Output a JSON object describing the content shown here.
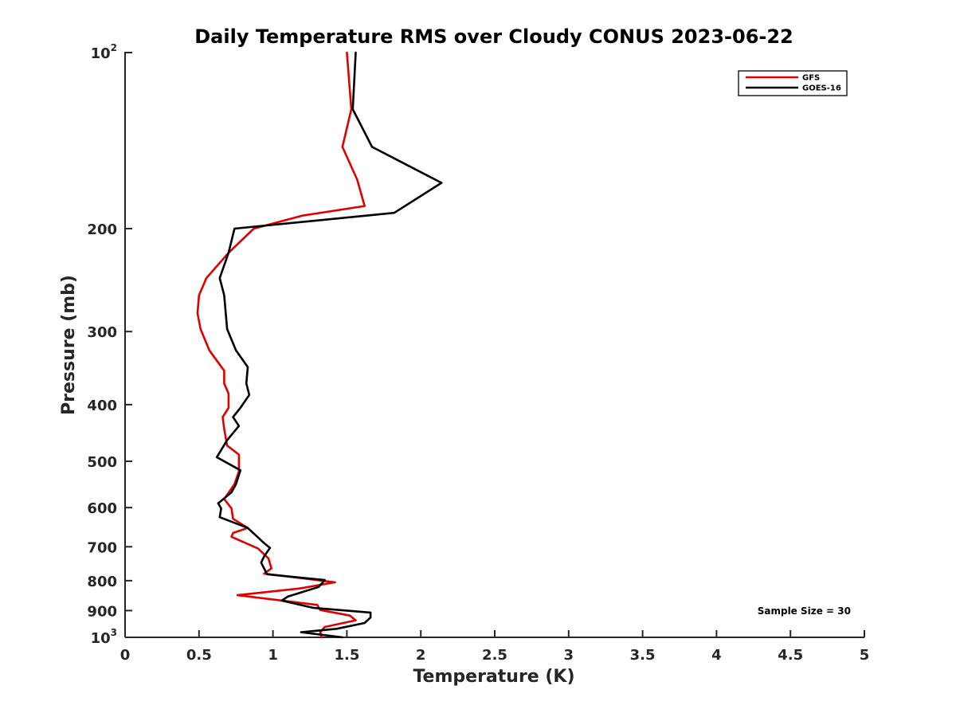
{
  "chart_data": {
    "type": "line",
    "title": "Daily Temperature RMS over Cloudy CONUS 2023-06-22",
    "xlabel": "Temperature (K)",
    "ylabel": "Pressure (mb)",
    "xlim": [
      0,
      5
    ],
    "ylim": [
      100,
      1000
    ],
    "yscale": "log",
    "y_reversed": true,
    "grid": false,
    "legend_position": "top-right",
    "x_ticks": [
      {
        "value": 0,
        "label": "0"
      },
      {
        "value": 0.5,
        "label": "0.5"
      },
      {
        "value": 1,
        "label": "1"
      },
      {
        "value": 1.5,
        "label": "1.5"
      },
      {
        "value": 2,
        "label": "2"
      },
      {
        "value": 2.5,
        "label": "2.5"
      },
      {
        "value": 3,
        "label": "3"
      },
      {
        "value": 3.5,
        "label": "3.5"
      },
      {
        "value": 4,
        "label": "4"
      },
      {
        "value": 4.5,
        "label": "4.5"
      },
      {
        "value": 5,
        "label": "5"
      }
    ],
    "y_ticks": [
      {
        "value": 100,
        "base": "10",
        "exp": "2"
      },
      {
        "value": 200,
        "label": "200"
      },
      {
        "value": 300,
        "label": "300"
      },
      {
        "value": 400,
        "label": "400"
      },
      {
        "value": 500,
        "label": "500"
      },
      {
        "value": 600,
        "label": "600"
      },
      {
        "value": 700,
        "label": "700"
      },
      {
        "value": 800,
        "label": "800"
      },
      {
        "value": 900,
        "label": "900"
      },
      {
        "value": 1000,
        "base": "10",
        "exp": "3"
      }
    ],
    "annotation": "Sample Size = 30",
    "series": [
      {
        "name": "GFS",
        "color": "#e00000",
        "points": [
          [
            1.5,
            100
          ],
          [
            1.53,
            125
          ],
          [
            1.47,
            145
          ],
          [
            1.57,
            165
          ],
          [
            1.62,
            183
          ],
          [
            1.2,
            190
          ],
          [
            0.87,
            200
          ],
          [
            0.7,
            220
          ],
          [
            0.55,
            243
          ],
          [
            0.5,
            260
          ],
          [
            0.49,
            279
          ],
          [
            0.51,
            297
          ],
          [
            0.57,
            323
          ],
          [
            0.67,
            350
          ],
          [
            0.67,
            368
          ],
          [
            0.7,
            383
          ],
          [
            0.7,
            405
          ],
          [
            0.66,
            420
          ],
          [
            0.67,
            440
          ],
          [
            0.69,
            470
          ],
          [
            0.77,
            487
          ],
          [
            0.77,
            520
          ],
          [
            0.74,
            547
          ],
          [
            0.67,
            580
          ],
          [
            0.72,
            602
          ],
          [
            0.73,
            627
          ],
          [
            0.83,
            650
          ],
          [
            0.73,
            663
          ],
          [
            0.72,
            673
          ],
          [
            0.9,
            705
          ],
          [
            0.97,
            733
          ],
          [
            0.99,
            762
          ],
          [
            0.94,
            778
          ],
          [
            1.42,
            805
          ],
          [
            1.18,
            825
          ],
          [
            0.76,
            847
          ],
          [
            1.3,
            880
          ],
          [
            1.32,
            898
          ],
          [
            1.52,
            918
          ],
          [
            1.56,
            935
          ],
          [
            1.35,
            960
          ],
          [
            1.32,
            980
          ],
          [
            1.33,
            1000
          ]
        ]
      },
      {
        "name": "GOES-16",
        "color": "#000000",
        "points": [
          [
            1.56,
            100
          ],
          [
            1.54,
            125
          ],
          [
            1.67,
            145
          ],
          [
            2.14,
            167
          ],
          [
            1.82,
            188
          ],
          [
            0.74,
            200
          ],
          [
            0.7,
            220
          ],
          [
            0.64,
            243
          ],
          [
            0.67,
            260
          ],
          [
            0.69,
            297
          ],
          [
            0.75,
            323
          ],
          [
            0.83,
            345
          ],
          [
            0.82,
            368
          ],
          [
            0.84,
            385
          ],
          [
            0.78,
            405
          ],
          [
            0.73,
            420
          ],
          [
            0.77,
            435
          ],
          [
            0.69,
            460
          ],
          [
            0.62,
            492
          ],
          [
            0.78,
            518
          ],
          [
            0.75,
            547
          ],
          [
            0.72,
            565
          ],
          [
            0.63,
            590
          ],
          [
            0.65,
            602
          ],
          [
            0.64,
            623
          ],
          [
            0.83,
            650
          ],
          [
            0.94,
            690
          ],
          [
            0.98,
            703
          ],
          [
            0.94,
            727
          ],
          [
            0.92,
            745
          ],
          [
            0.96,
            780
          ],
          [
            1.35,
            798
          ],
          [
            1.31,
            820
          ],
          [
            1.1,
            852
          ],
          [
            1.06,
            865
          ],
          [
            1.27,
            890
          ],
          [
            1.66,
            907
          ],
          [
            1.66,
            925
          ],
          [
            1.62,
            945
          ],
          [
            1.43,
            967
          ],
          [
            1.19,
            980
          ],
          [
            1.47,
            1000
          ]
        ]
      }
    ]
  }
}
